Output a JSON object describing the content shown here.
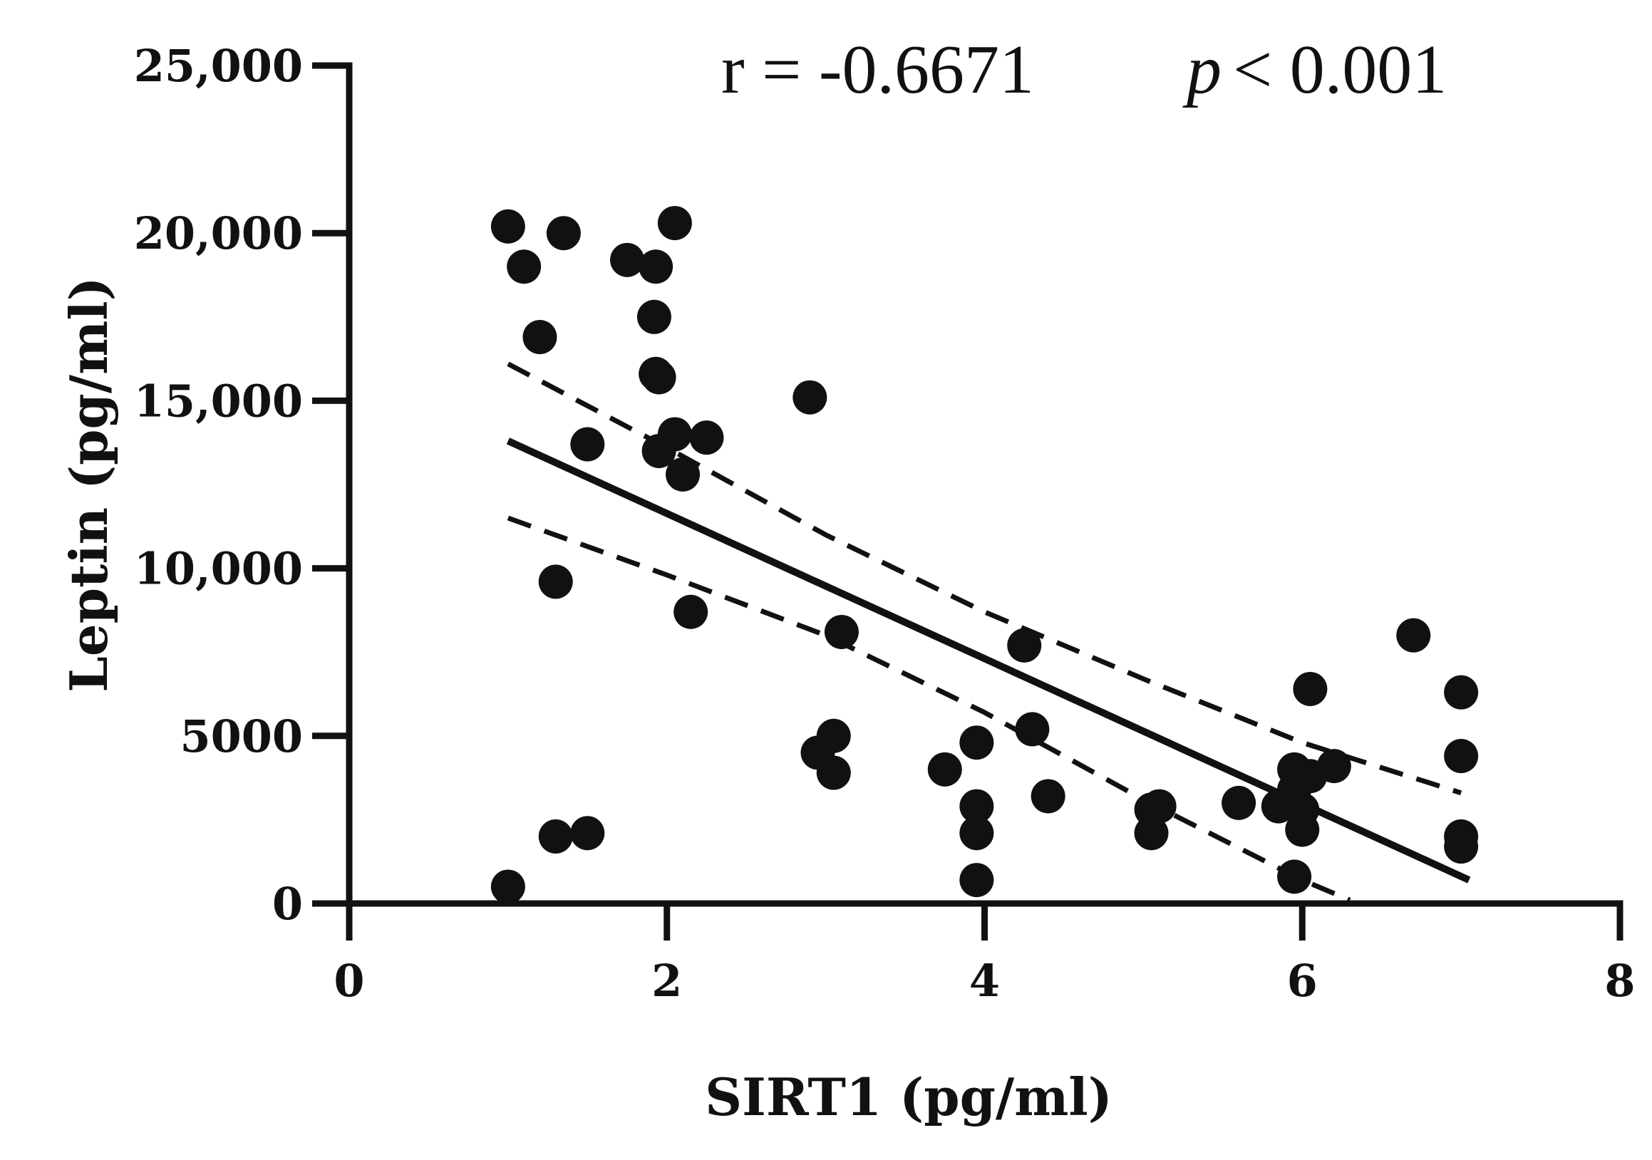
{
  "chart_data": {
    "type": "scatter",
    "title": "",
    "xlabel": "SIRT1 (pg/ml)",
    "ylabel": "Leptin (pg/ml)",
    "xlim": [
      0,
      8
    ],
    "ylim": [
      0,
      25000
    ],
    "x_ticks": [
      0,
      2,
      4,
      6,
      8
    ],
    "x_tick_labels": [
      "0",
      "2",
      "4",
      "6",
      "8"
    ],
    "y_ticks": [
      0,
      5000,
      10000,
      15000,
      20000,
      25000
    ],
    "y_tick_labels": [
      "0",
      "5000",
      "10,000",
      "15,000",
      "20,000",
      "25,000"
    ],
    "annotations": {
      "r_text": "r = -0.6671",
      "p_symbol": "p",
      "p_text": "< 0.001"
    },
    "colors": {
      "ink": "#111111",
      "background": "#ffffff"
    },
    "series": [
      {
        "name": "observations",
        "kind": "points",
        "points": [
          [
            1.0,
            20200
          ],
          [
            1.1,
            19000
          ],
          [
            1.35,
            20000
          ],
          [
            1.2,
            16900
          ],
          [
            1.5,
            13700
          ],
          [
            1.3,
            9600
          ],
          [
            1.0,
            500
          ],
          [
            1.3,
            2000
          ],
          [
            1.5,
            2100
          ],
          [
            1.75,
            19200
          ],
          [
            1.93,
            19000
          ],
          [
            1.92,
            17500
          ],
          [
            1.93,
            15800
          ],
          [
            1.95,
            15700
          ],
          [
            2.05,
            20300
          ],
          [
            2.05,
            14000
          ],
          [
            2.25,
            13900
          ],
          [
            1.95,
            13500
          ],
          [
            2.1,
            12800
          ],
          [
            2.15,
            8700
          ],
          [
            2.9,
            15100
          ],
          [
            3.1,
            8100
          ],
          [
            2.95,
            4500
          ],
          [
            3.05,
            5000
          ],
          [
            3.05,
            3900
          ],
          [
            3.75,
            4000
          ],
          [
            3.95,
            4800
          ],
          [
            3.95,
            2900
          ],
          [
            3.95,
            2100
          ],
          [
            3.95,
            700
          ],
          [
            4.25,
            7700
          ],
          [
            4.3,
            5200
          ],
          [
            4.4,
            3200
          ],
          [
            5.05,
            2800
          ],
          [
            5.05,
            2100
          ],
          [
            5.1,
            2900
          ],
          [
            5.6,
            3000
          ],
          [
            5.85,
            2900
          ],
          [
            5.95,
            4000
          ],
          [
            5.95,
            3400
          ],
          [
            6.0,
            2800
          ],
          [
            6.0,
            2200
          ],
          [
            6.05,
            3800
          ],
          [
            5.95,
            800
          ],
          [
            6.05,
            6400
          ],
          [
            6.2,
            4100
          ],
          [
            6.7,
            8000
          ],
          [
            7.0,
            6300
          ],
          [
            7.0,
            4400
          ],
          [
            7.0,
            2000
          ],
          [
            7.0,
            1700
          ]
        ]
      },
      {
        "name": "regression line",
        "kind": "line",
        "style": "solid",
        "points": [
          [
            1.0,
            13800
          ],
          [
            7.05,
            700
          ]
        ]
      },
      {
        "name": "upper 95% CI",
        "kind": "line",
        "style": "dashed",
        "points": [
          [
            1.0,
            16100
          ],
          [
            2.0,
            13600
          ],
          [
            3.0,
            11000
          ],
          [
            4.0,
            8700
          ],
          [
            5.0,
            6700
          ],
          [
            6.0,
            4800
          ],
          [
            7.0,
            3300
          ]
        ]
      },
      {
        "name": "lower 95% CI",
        "kind": "line",
        "style": "dashed",
        "points": [
          [
            1.0,
            11500
          ],
          [
            2.0,
            9800
          ],
          [
            3.0,
            8000
          ],
          [
            4.0,
            5700
          ],
          [
            5.0,
            3100
          ],
          [
            6.0,
            700
          ],
          [
            6.3,
            100
          ]
        ]
      }
    ]
  }
}
